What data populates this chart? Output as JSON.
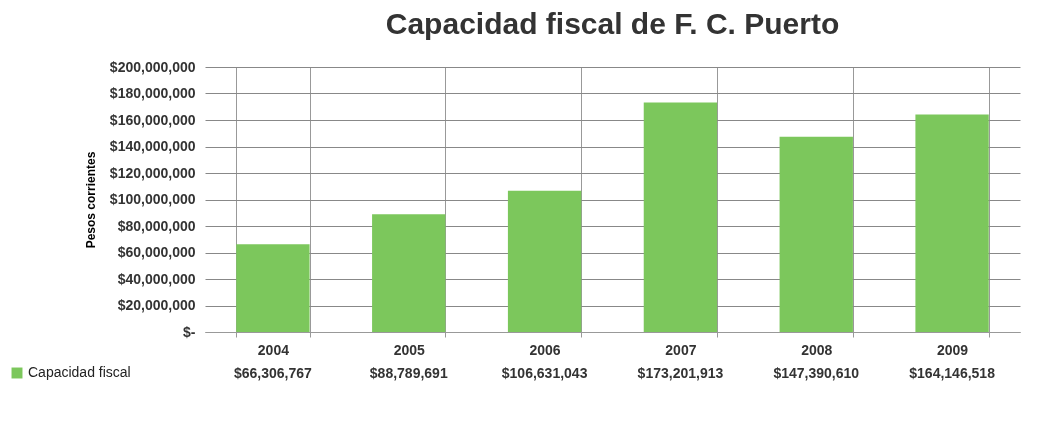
{
  "chart_data": {
    "type": "bar",
    "title": "Capacidad fiscal de F. C. Puerto",
    "ylabel": "Pesos corrientes",
    "categories": [
      "2004",
      "2005",
      "2006",
      "2007",
      "2008",
      "2009"
    ],
    "series": [
      {
        "name": "Capacidad fiscal",
        "color": "#7cc75c",
        "values": [
          66306767,
          88789691,
          106631043,
          173201913,
          147390610,
          164146518
        ],
        "value_labels": [
          "$66,306,767",
          "$88,789,691",
          "$106,631,043",
          "$173,201,913",
          "$147,390,610",
          "$164,146,518"
        ]
      }
    ],
    "ylim": [
      0,
      200000000
    ],
    "yticks": [
      {
        "value": 0,
        "label": "$-"
      },
      {
        "value": 20000000,
        "label": "$20,000,000"
      },
      {
        "value": 40000000,
        "label": "$40,000,000"
      },
      {
        "value": 60000000,
        "label": "$60,000,000"
      },
      {
        "value": 80000000,
        "label": "$80,000,000"
      },
      {
        "value": 100000000,
        "label": "$100,000,000"
      },
      {
        "value": 120000000,
        "label": "$120,000,000"
      },
      {
        "value": 140000000,
        "label": "$140,000,000"
      },
      {
        "value": 160000000,
        "label": "$160,000,000"
      },
      {
        "value": 180000000,
        "label": "$180,000,000"
      },
      {
        "value": 200000000,
        "label": "$200,000,000"
      }
    ],
    "grid": "y",
    "legend": "bottom"
  }
}
